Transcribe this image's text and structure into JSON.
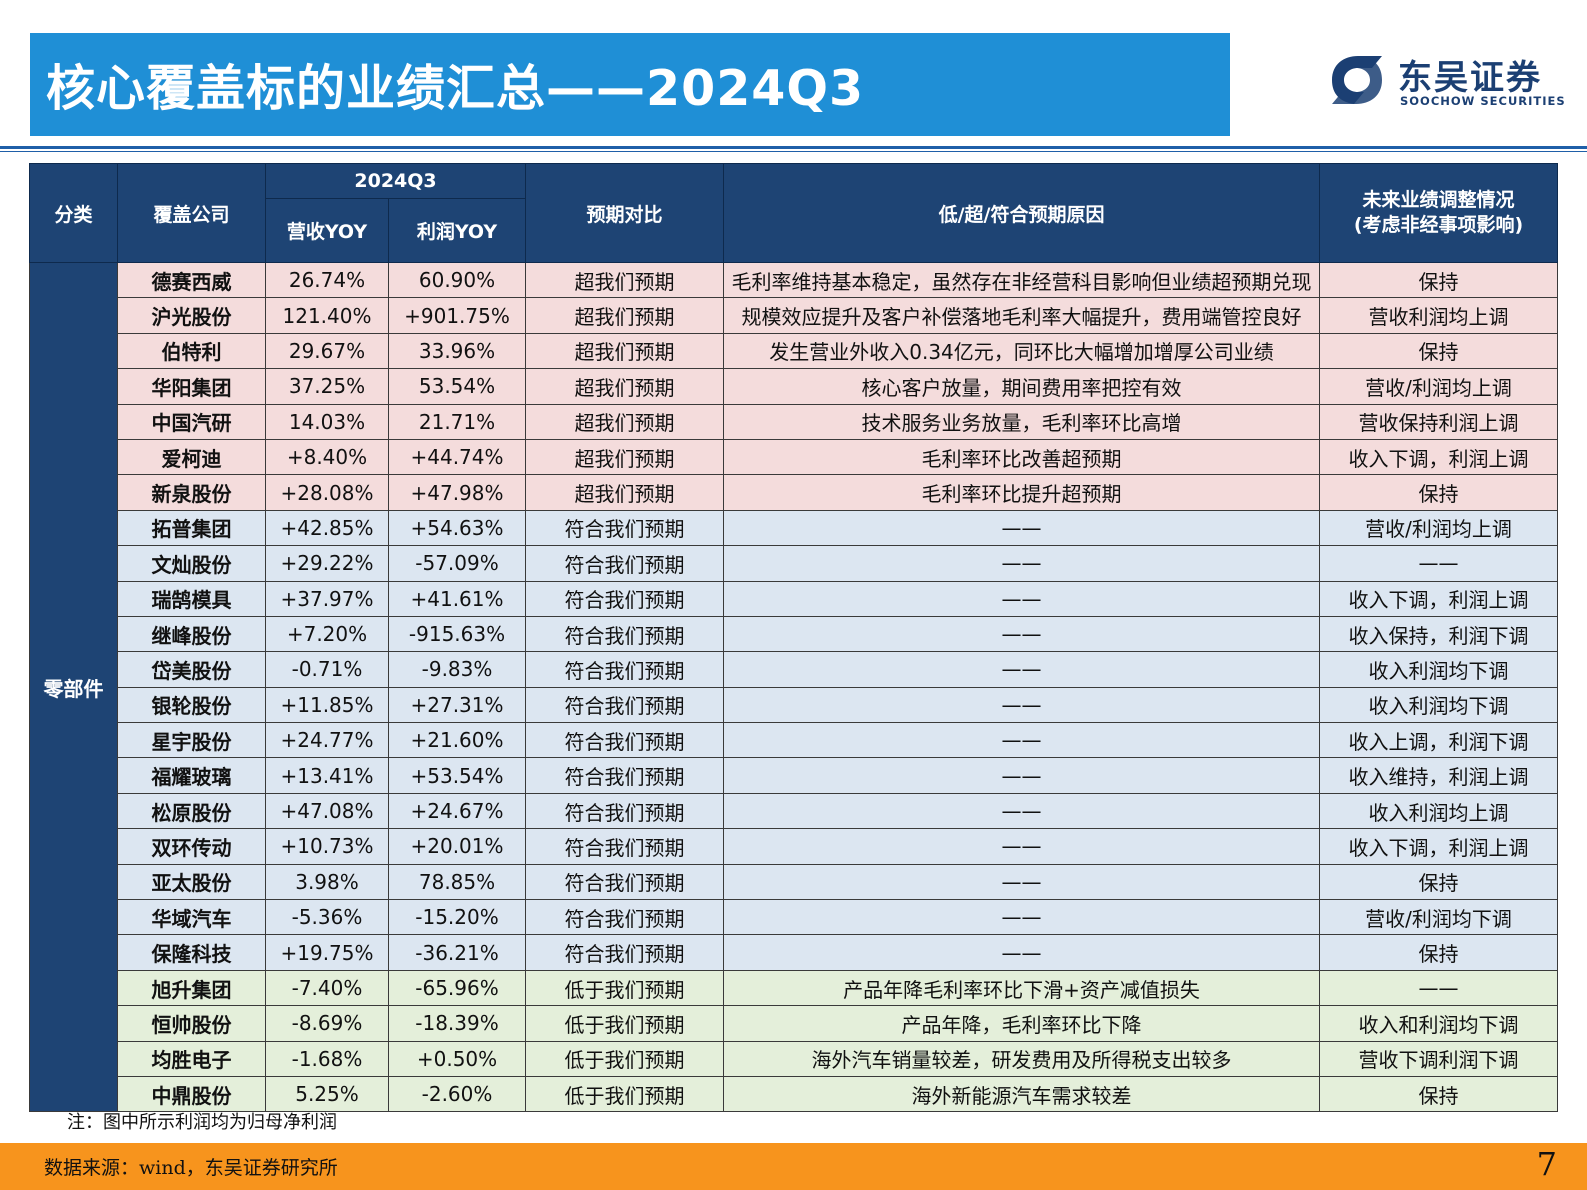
{
  "header": {
    "title": "核心覆盖标的业绩汇总——2024Q3",
    "logo": {
      "cn": "东吴证券",
      "en": "SOOCHOW SECURITIES",
      "icon": "soochow-logo-icon",
      "color": "#1b3f73"
    }
  },
  "colors": {
    "title_bar": "#1f8fd6",
    "header_fill": "#1e4474",
    "exceed_row": "#f4dcdc",
    "meet_row": "#dce6f1",
    "below_row": "#e4efda",
    "footer_bar": "#f7941d"
  },
  "table": {
    "headers": {
      "category": "分类",
      "company": "覆盖公司",
      "period": "2024Q3",
      "revenue_yoy": "营收YOY",
      "profit_yoy": "利润YOY",
      "expectation": "预期对比",
      "reason": "低/超/符合预期原因",
      "future_line1": "未来业绩调整情况",
      "future_line2": "(考虑非经事项影响)"
    },
    "category": "零部件",
    "rows": [
      {
        "company": "德赛西威",
        "revenue": "26.74%",
        "profit": "60.90%",
        "expectation": "超我们预期",
        "reason": "毛利率维持基本稳定，虽然存在非经营科目影响但业绩超预期兑现",
        "future": "保持",
        "group": "exceed"
      },
      {
        "company": "沪光股份",
        "revenue": "121.40%",
        "profit": "+901.75%",
        "expectation": "超我们预期",
        "reason": "规模效应提升及客户补偿落地毛利率大幅提升，费用端管控良好",
        "future": "营收利润均上调",
        "group": "exceed"
      },
      {
        "company": "伯特利",
        "revenue": "29.67%",
        "profit": "33.96%",
        "expectation": "超我们预期",
        "reason": "发生营业外收入0.34亿元，同环比大幅增加增厚公司业绩",
        "future": "保持",
        "group": "exceed"
      },
      {
        "company": "华阳集团",
        "revenue": "37.25%",
        "profit": "53.54%",
        "expectation": "超我们预期",
        "reason": "核心客户放量，期间费用率把控有效",
        "future": "营收/利润均上调",
        "group": "exceed"
      },
      {
        "company": "中国汽研",
        "revenue": "14.03%",
        "profit": "21.71%",
        "expectation": "超我们预期",
        "reason": "技术服务业务放量，毛利率环比高增",
        "future": "营收保持利润上调",
        "group": "exceed"
      },
      {
        "company": "爱柯迪",
        "revenue": "+8.40%",
        "profit": "+44.74%",
        "expectation": "超我们预期",
        "reason": "毛利率环比改善超预期",
        "future": "收入下调，利润上调",
        "group": "exceed"
      },
      {
        "company": "新泉股份",
        "revenue": "+28.08%",
        "profit": "+47.98%",
        "expectation": "超我们预期",
        "reason": "毛利率环比提升超预期",
        "future": "保持",
        "group": "exceed"
      },
      {
        "company": "拓普集团",
        "revenue": "+42.85%",
        "profit": "+54.63%",
        "expectation": "符合我们预期",
        "reason": "——",
        "future": "营收/利润均上调",
        "group": "meet"
      },
      {
        "company": "文灿股份",
        "revenue": "+29.22%",
        "profit": "-57.09%",
        "expectation": "符合我们预期",
        "reason": "——",
        "future": "——",
        "group": "meet"
      },
      {
        "company": "瑞鹄模具",
        "revenue": "+37.97%",
        "profit": "+41.61%",
        "expectation": "符合我们预期",
        "reason": "——",
        "future": "收入下调，利润上调",
        "group": "meet"
      },
      {
        "company": "继峰股份",
        "revenue": "+7.20%",
        "profit": "-915.63%",
        "expectation": "符合我们预期",
        "reason": "——",
        "future": "收入保持，利润下调",
        "group": "meet"
      },
      {
        "company": "岱美股份",
        "revenue": "-0.71%",
        "profit": "-9.83%",
        "expectation": "符合我们预期",
        "reason": "——",
        "future": "收入利润均下调",
        "group": "meet"
      },
      {
        "company": "银轮股份",
        "revenue": "+11.85%",
        "profit": "+27.31%",
        "expectation": "符合我们预期",
        "reason": "——",
        "future": "收入利润均下调",
        "group": "meet"
      },
      {
        "company": "星宇股份",
        "revenue": "+24.77%",
        "profit": "+21.60%",
        "expectation": "符合我们预期",
        "reason": "——",
        "future": "收入上调，利润下调",
        "group": "meet"
      },
      {
        "company": "福耀玻璃",
        "revenue": "+13.41%",
        "profit": "+53.54%",
        "expectation": "符合我们预期",
        "reason": "——",
        "future": "收入维持，利润上调",
        "group": "meet"
      },
      {
        "company": "松原股份",
        "revenue": "+47.08%",
        "profit": "+24.67%",
        "expectation": "符合我们预期",
        "reason": "——",
        "future": "收入利润均上调",
        "group": "meet"
      },
      {
        "company": "双环传动",
        "revenue": "+10.73%",
        "profit": "+20.01%",
        "expectation": "符合我们预期",
        "reason": "——",
        "future": "收入下调，利润上调",
        "group": "meet"
      },
      {
        "company": "亚太股份",
        "revenue": "3.98%",
        "profit": "78.85%",
        "expectation": "符合我们预期",
        "reason": "——",
        "future": "保持",
        "group": "meet"
      },
      {
        "company": "华域汽车",
        "revenue": "-5.36%",
        "profit": "-15.20%",
        "expectation": "符合我们预期",
        "reason": "——",
        "future": "营收/利润均下调",
        "group": "meet"
      },
      {
        "company": "保隆科技",
        "revenue": "+19.75%",
        "profit": "-36.21%",
        "expectation": "符合我们预期",
        "reason": "——",
        "future": "保持",
        "group": "meet"
      },
      {
        "company": "旭升集团",
        "revenue": "-7.40%",
        "profit": "-65.96%",
        "expectation": "低于我们预期",
        "reason": "产品年降毛利率环比下滑+资产减值损失",
        "future": "——",
        "group": "below"
      },
      {
        "company": "恒帅股份",
        "revenue": "-8.69%",
        "profit": "-18.39%",
        "expectation": "低于我们预期",
        "reason": "产品年降，毛利率环比下降",
        "future": "收入和利润均下调",
        "group": "below"
      },
      {
        "company": "均胜电子",
        "revenue": "-1.68%",
        "profit": "+0.50%",
        "expectation": "低于我们预期",
        "reason": "海外汽车销量较差，研发费用及所得税支出较多",
        "future": "营收下调利润下调",
        "group": "below"
      },
      {
        "company": "中鼎股份",
        "revenue": "5.25%",
        "profit": "-2.60%",
        "expectation": "低于我们预期",
        "reason": "海外新能源汽车需求较差",
        "future": "保持",
        "group": "below"
      }
    ]
  },
  "note": "注：图中所示利润均为归母净利润",
  "footer": {
    "source": "数据来源：wind，东吴证券研究所",
    "page": "7"
  }
}
